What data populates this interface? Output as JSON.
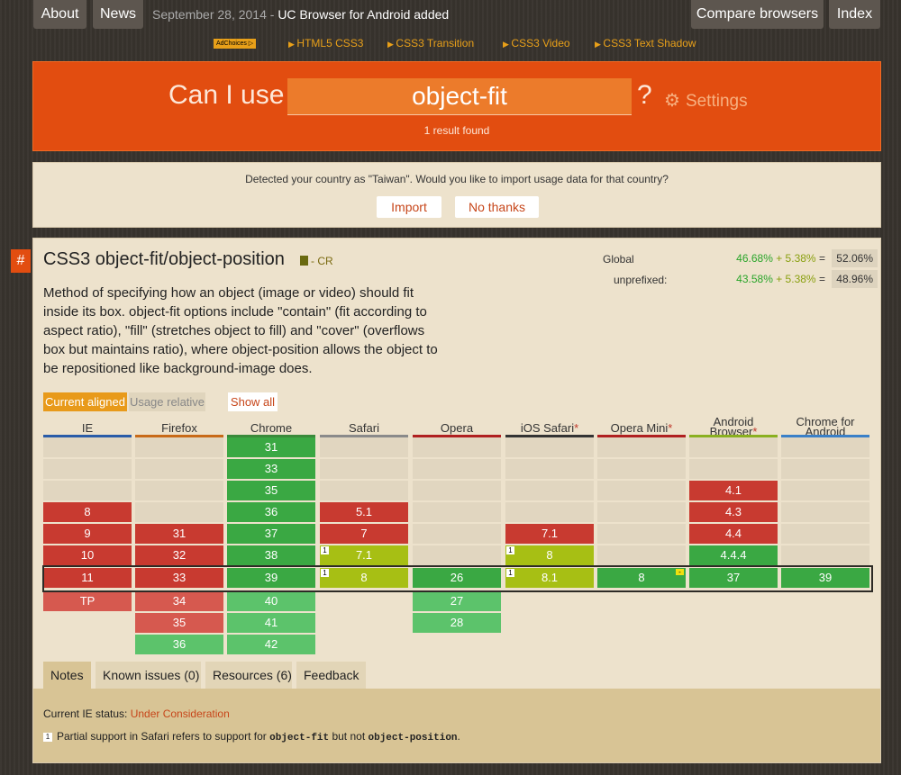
{
  "topnav": {
    "about": "About",
    "news": "News",
    "news_date": "September 28, 2014 - ",
    "news_text": "UC Browser for Android added",
    "compare": "Compare browsers",
    "index": "Index"
  },
  "adbar": {
    "adchoices": "AdChoices ▷",
    "links": [
      "HTML5 CSS3",
      "CSS3 Transition",
      "CSS3 Video",
      "CSS3 Text Shadow"
    ]
  },
  "search": {
    "can_i_use": "Can I use",
    "query": "object-fit",
    "qmark": "?",
    "settings": "Settings",
    "results": "1 result found"
  },
  "country": {
    "message": "Detected your country as \"Taiwan\". Would you like to import usage data for that country?",
    "import": "Import",
    "no_thanks": "No thanks"
  },
  "feature": {
    "hash": "#",
    "title": "CSS3 object-fit/object-position",
    "status": "- CR",
    "description": "Method of specifying how an object (image or video) should fit inside its box. object-fit options include \"contain\" (fit according to aspect ratio), \"fill\" (stretches object to fill) and \"cover\" (overflows box but maintains ratio), where object-position allows the object to be repositioned like background-image does.",
    "stats": {
      "global_label": "Global",
      "global_full": "46.68%",
      "global_partial": "+ 5.38%",
      "global_eq": "=",
      "global_total": "52.06%",
      "unprefixed_label": "unprefixed:",
      "unprefixed_full": "43.58%",
      "unprefixed_partial": "+ 5.38%",
      "unprefixed_eq": "=",
      "unprefixed_total": "48.96%"
    },
    "views": {
      "current_aligned": "Current aligned",
      "usage_relative": "Usage relative",
      "show_all": "Show all"
    }
  },
  "browsers": [
    {
      "name": "IE",
      "star": "",
      "color": "#2a5ca8"
    },
    {
      "name": "Firefox",
      "star": "",
      "color": "#c86a18"
    },
    {
      "name": "Chrome",
      "star": "",
      "color": "#3a8a3a"
    },
    {
      "name": "Safari",
      "star": "",
      "color": "#8a8a8a"
    },
    {
      "name": "Opera",
      "star": "",
      "color": "#b02020"
    },
    {
      "name": "iOS Safari",
      "star": "*",
      "color": "#333333"
    },
    {
      "name": "Opera Mini",
      "star": "*",
      "color": "#b02020"
    },
    {
      "name": "Android Browser",
      "star": "*",
      "color": "#8ab020"
    },
    {
      "name": "Chrome for Android",
      "star": "",
      "color": "#3a80c8"
    }
  ],
  "columns": [
    {
      "past": [
        [
          "",
          "blank"
        ],
        [
          "",
          "blank"
        ],
        [
          "",
          "blank"
        ],
        [
          "8",
          "n"
        ],
        [
          "9",
          "n"
        ],
        [
          "10",
          "n"
        ]
      ],
      "current": [
        "11",
        "n"
      ],
      "future": [
        [
          "TP",
          "fn"
        ]
      ]
    },
    {
      "past": [
        [
          "",
          "blank"
        ],
        [
          "",
          "blank"
        ],
        [
          "",
          "blank"
        ],
        [
          "",
          "blank"
        ],
        [
          "31",
          "n"
        ],
        [
          "32",
          "n"
        ]
      ],
      "current": [
        "33",
        "n"
      ],
      "future": [
        [
          "34",
          "fn"
        ],
        [
          "35",
          "fn"
        ],
        [
          "36",
          "fy"
        ]
      ]
    },
    {
      "past": [
        [
          "31",
          "y"
        ],
        [
          "33",
          "y"
        ],
        [
          "35",
          "y"
        ],
        [
          "36",
          "y"
        ],
        [
          "37",
          "y"
        ],
        [
          "38",
          "y"
        ]
      ],
      "current": [
        "39",
        "y"
      ],
      "future": [
        [
          "40",
          "fy"
        ],
        [
          "41",
          "fy"
        ],
        [
          "42",
          "fy"
        ]
      ]
    },
    {
      "past": [
        [
          "",
          "blank"
        ],
        [
          "",
          "blank"
        ],
        [
          "",
          "blank"
        ],
        [
          "5.1",
          "n"
        ],
        [
          "7",
          "n"
        ],
        [
          "7.1",
          "a",
          "1"
        ]
      ],
      "current": [
        "8",
        "a",
        "1"
      ],
      "future": []
    },
    {
      "past": [
        [
          "",
          "blank"
        ],
        [
          "",
          "blank"
        ],
        [
          "",
          "blank"
        ],
        [
          "",
          "blank"
        ],
        [
          "",
          "blank"
        ],
        [
          "",
          "blank"
        ]
      ],
      "current": [
        "26",
        "y"
      ],
      "future": [
        [
          "27",
          "fy"
        ],
        [
          "28",
          "fy"
        ]
      ]
    },
    {
      "past": [
        [
          "",
          "blank"
        ],
        [
          "",
          "blank"
        ],
        [
          "",
          "blank"
        ],
        [
          "",
          "blank"
        ],
        [
          "7.1",
          "n"
        ],
        [
          "8",
          "a",
          "1"
        ]
      ],
      "current": [
        "8.1",
        "a",
        "1"
      ],
      "future": []
    },
    {
      "past": [
        [
          "",
          "blank"
        ],
        [
          "",
          "blank"
        ],
        [
          "",
          "blank"
        ],
        [
          "",
          "blank"
        ],
        [
          "",
          "blank"
        ],
        [
          "",
          "blank"
        ]
      ],
      "current": [
        "8",
        "y",
        "",
        "-"
      ],
      "future": []
    },
    {
      "past": [
        [
          "",
          "blank"
        ],
        [
          "",
          "blank"
        ],
        [
          "4.1",
          "n"
        ],
        [
          "4.3",
          "n"
        ],
        [
          "4.4",
          "n"
        ],
        [
          "4.4.4",
          "y"
        ]
      ],
      "current": [
        "37",
        "y"
      ],
      "future": []
    },
    {
      "past": [
        [
          "",
          "blank"
        ],
        [
          "",
          "blank"
        ],
        [
          "",
          "blank"
        ],
        [
          "",
          "blank"
        ],
        [
          "",
          "blank"
        ],
        [
          "",
          "blank"
        ]
      ],
      "current": [
        "39",
        "y"
      ],
      "future": []
    }
  ],
  "tabs": [
    "Notes",
    "Known issues (0)",
    "Resources (6)",
    "Feedback"
  ],
  "notes": {
    "ie_status_label": "Current IE status: ",
    "ie_status": "Under Consideration",
    "fn_num": "1",
    "fn_pre": "Partial support in Safari refers to support for ",
    "fn_code1": "object-fit",
    "fn_mid": " but not ",
    "fn_code2": "object-position",
    "fn_end": "."
  }
}
